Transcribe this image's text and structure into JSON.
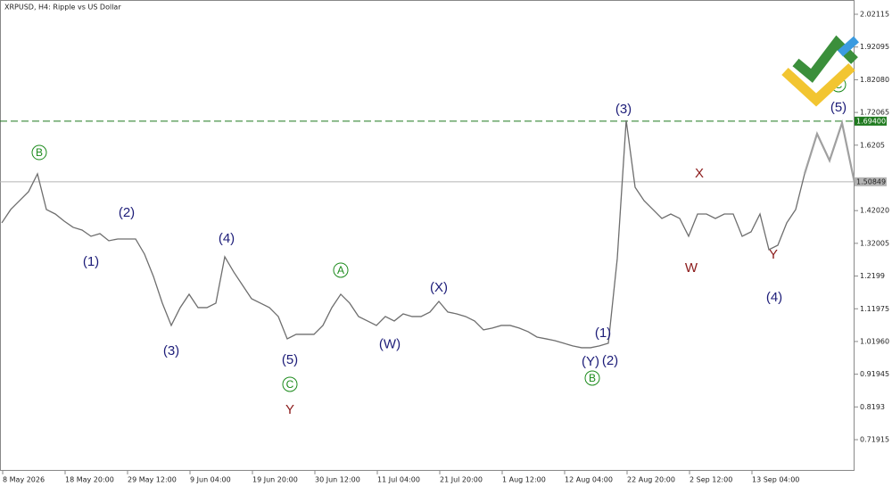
{
  "chart_data": {
    "type": "line",
    "title": "XRPUSD, H4:  Ripple vs US Dollar",
    "ylim": [
      0.6237,
      2.0648
    ],
    "yticks": [
      2.02115,
      1.92095,
      {
        "value": 1.8208,
        "label": "1.82080"
      },
      1.72065,
      1.6205,
      {
        "value": 1.4202,
        "label": "1.42020"
      },
      1.32005,
      1.2199,
      1.11975,
      {
        "value": 1.0196,
        "label": "1.01960"
      },
      0.91945,
      0.8193,
      0.71915
    ],
    "x_labels": [
      "8 May 2026",
      "18 May 20:00",
      "29 May 12:00",
      "9 Jun 04:00",
      "19 Jun 20:00",
      "30 Jun 12:00",
      "11 Jul 04:00",
      "21 Jul 20:00",
      "1 Aug 12:00",
      "12 Aug 04:00",
      "22 Aug 20:00",
      "2 Sep 12:00",
      "13 Sep 04:00"
    ],
    "color": "#6e6e6e",
    "values": [
      1.3826,
      1.4235,
      1.4508,
      1.4781,
      1.5326,
      1.4235,
      1.4098,
      1.388,
      1.3689,
      1.3607,
      1.3416,
      1.3498,
      1.328,
      1.3334,
      1.3334,
      1.3334,
      1.287,
      1.2188,
      1.1369,
      1.0687,
      1.1233,
      1.1642,
      1.1233,
      1.1233,
      1.1369,
      1.2788,
      1.2325,
      1.1915,
      1.1506,
      1.1369,
      1.1233,
      1.096,
      1.0278,
      1.0414,
      1.0414,
      1.0414,
      1.0687,
      1.1233,
      1.1642,
      1.1369,
      1.096,
      1.0824,
      1.0687,
      1.096,
      1.0824,
      1.1042,
      1.096,
      1.096,
      1.1097,
      1.1424,
      1.1097,
      1.1042,
      1.096,
      1.0824,
      1.0551,
      1.0606,
      1.0687,
      1.0687,
      1.0606,
      1.0496,
      1.0332,
      1.0278,
      1.0223,
      1.0142,
      1.006,
      1.0005,
      1.0005,
      1.006,
      1.0142,
      1.2734,
      1.6964,
      1.4917,
      1.4508,
      1.4235,
      1.3962,
      1.4098,
      1.3962,
      1.3416,
      1.4098,
      1.4098,
      1.3962,
      1.4098,
      1.4098,
      1.3416,
      1.3552,
      1.4098,
      1.3007,
      1.3143,
      1.3826,
      1.4235,
      1.5326
    ],
    "forecast": [
      1.6554,
      1.5735,
      1.6882,
      1.5053
    ],
    "forecast_color": "#a0a0a0",
    "levels": [
      {
        "value": {
          "value": 1.694,
          "label": "1.69400"
        },
        "color": "#1e7a1e",
        "style": "dashed"
      },
      {
        "value": 1.50849,
        "color": "#b4b4b4",
        "style": "solid"
      }
    ],
    "annotations": [
      {
        "text": "B",
        "x": 4.2,
        "y": 1.598,
        "color": "#1a8a1a",
        "circled": true
      },
      {
        "text": "(1)",
        "x": 10.0,
        "y": 1.2625,
        "color": "#1c1c78",
        "circled": false
      },
      {
        "text": "(2)",
        "x": 14.0,
        "y": 1.4126,
        "color": "#1c1c78",
        "circled": false
      },
      {
        "text": "(3)",
        "x": 19.0,
        "y": 0.9896,
        "color": "#1c1c78",
        "circled": false
      },
      {
        "text": "(4)",
        "x": 25.2,
        "y": 1.3334,
        "color": "#1c1c78",
        "circled": false
      },
      {
        "text": "(5)",
        "x": 32.3,
        "y": 0.9623,
        "color": "#1c1c78",
        "circled": false
      },
      {
        "text": "C",
        "x": 32.3,
        "y": 0.8886,
        "color": "#1a8a1a",
        "circled": true
      },
      {
        "text": "Y",
        "x": 32.3,
        "y": 0.8095,
        "color": "#8b1a1a",
        "circled": false
      },
      {
        "text": "A",
        "x": 38.0,
        "y": 1.2379,
        "color": "#1a8a1a",
        "circled": true
      },
      {
        "text": "(W)",
        "x": 43.5,
        "y": 1.0096,
        "color": "#1c1c78",
        "circled": false
      },
      {
        "text": "(X)",
        "x": 49.0,
        "y": 1.1833,
        "color": "#1c1c78",
        "circled": false
      },
      {
        "text": "(Y)",
        "x": 66.0,
        "y": 0.9568,
        "color": "#1c1c78",
        "circled": false
      },
      {
        "text": "B",
        "x": 66.2,
        "y": 0.9077,
        "color": "#1a8a1a",
        "circled": true
      },
      {
        "text": "(1)",
        "x": 67.4,
        "y": 1.0442,
        "color": "#1c1c78",
        "circled": false
      },
      {
        "text": "(2)",
        "x": 68.2,
        "y": 0.9596,
        "color": "#1c1c78",
        "circled": false
      },
      {
        "text": "(3)",
        "x": 69.7,
        "y": 1.7291,
        "color": "#1c1c78",
        "circled": false
      },
      {
        "text": "X",
        "x": 78.2,
        "y": 1.5326,
        "color": "#8b1a1a",
        "circled": false
      },
      {
        "text": "W",
        "x": 77.3,
        "y": 1.2434,
        "color": "#8b1a1a",
        "circled": false
      },
      {
        "text": "Y",
        "x": 86.5,
        "y": 1.2843,
        "color": "#8b1a1a",
        "circled": false
      },
      {
        "text": "(4)",
        "x": 86.6,
        "y": 1.1533,
        "color": "#1c1c78",
        "circled": false
      },
      {
        "text": "(5)",
        "x": 93.8,
        "y": 1.7346,
        "color": "#1c1c78",
        "circled": false
      },
      {
        "text": "C",
        "x": 93.8,
        "y": 1.8056,
        "color": "#1a8a1a",
        "circled": true
      }
    ]
  }
}
